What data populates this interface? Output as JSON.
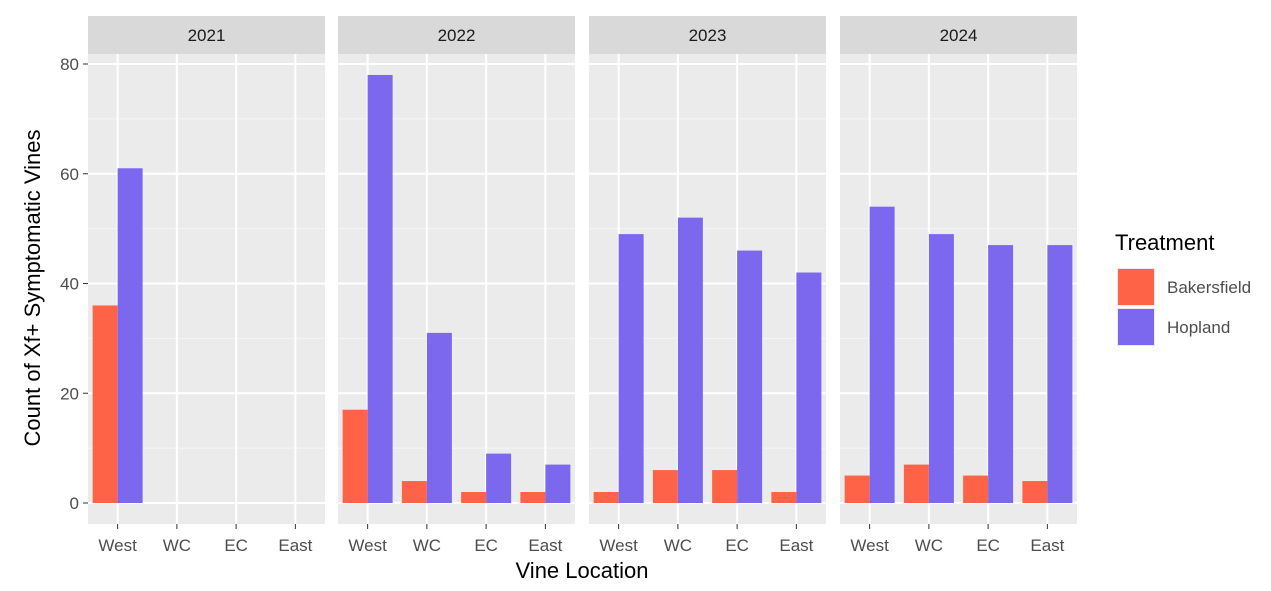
{
  "chart_data": {
    "type": "bar",
    "facet_variable": "year",
    "facets": [
      {
        "label": "2021",
        "categories": [
          "West",
          "WC",
          "EC",
          "East"
        ],
        "series": [
          {
            "name": "Bakersfield",
            "values": [
              36,
              0,
              0,
              0
            ]
          },
          {
            "name": "Hopland",
            "values": [
              61,
              0,
              0,
              0
            ]
          }
        ]
      },
      {
        "label": "2022",
        "categories": [
          "West",
          "WC",
          "EC",
          "East"
        ],
        "series": [
          {
            "name": "Bakersfield",
            "values": [
              17,
              4,
              2,
              2
            ]
          },
          {
            "name": "Hopland",
            "values": [
              78,
              31,
              9,
              7
            ]
          }
        ]
      },
      {
        "label": "2023",
        "categories": [
          "West",
          "WC",
          "EC",
          "East"
        ],
        "series": [
          {
            "name": "Bakersfield",
            "values": [
              2,
              6,
              6,
              2
            ]
          },
          {
            "name": "Hopland",
            "values": [
              49,
              52,
              46,
              42
            ]
          }
        ]
      },
      {
        "label": "2024",
        "categories": [
          "West",
          "WC",
          "EC",
          "East"
        ],
        "series": [
          {
            "name": "Bakersfield",
            "values": [
              5,
              7,
              5,
              4
            ]
          },
          {
            "name": "Hopland",
            "values": [
              54,
              49,
              47,
              47
            ]
          }
        ]
      }
    ],
    "xlabel": "Vine Location",
    "ylabel": "Count of Xf+ Symptomatic Vines",
    "ylim": [
      0,
      84
    ],
    "yticks": [
      0,
      20,
      40,
      60,
      80
    ],
    "grid": true,
    "legend": {
      "title": "Treatment",
      "position": "right",
      "entries": [
        "Bakersfield",
        "Hopland"
      ]
    },
    "colors": {
      "Bakersfield": "#FF6347",
      "Hopland": "#7B68EE",
      "panel_background": "#EBEBEB",
      "strip_background": "#D9D9D9",
      "grid_major": "#FFFFFF"
    }
  }
}
